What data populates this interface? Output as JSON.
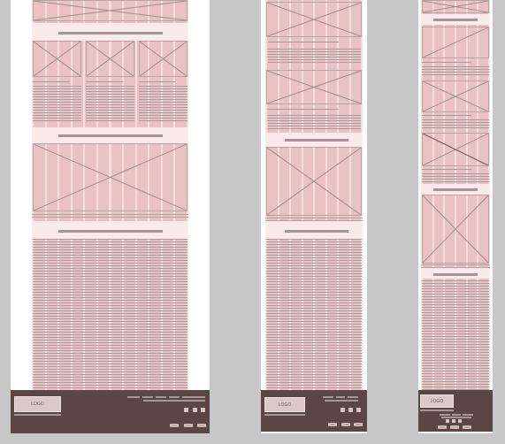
{
  "diagram": {
    "kind": "responsive-wireframe",
    "layouts": [
      {
        "id": "desktop",
        "columns": 12
      },
      {
        "id": "tablet",
        "columns": 8
      },
      {
        "id": "mobile",
        "columns": 6
      }
    ],
    "footer": {
      "logo_text": "LOGO"
    },
    "colors": {
      "background": "#c7c7c7",
      "frame": "#ffffff",
      "content": "#f6dede",
      "column": "#e9c2c4",
      "placeholder_line": "#a79a9a",
      "footer": "#5c4645"
    }
  }
}
